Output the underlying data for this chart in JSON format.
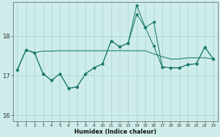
{
  "xlabel": "Humidex (Indice chaleur)",
  "bg_color": "#ceecea",
  "line_color": "#1a7a6e",
  "grid_color": "#9ed4d0",
  "x_values": [
    0,
    1,
    2,
    3,
    4,
    5,
    6,
    7,
    8,
    9,
    10,
    11,
    12,
    13,
    14,
    15,
    16,
    17,
    18,
    19,
    20,
    21,
    22,
    23
  ],
  "series1": [
    17.15,
    17.65,
    17.58,
    17.62,
    17.62,
    17.63,
    17.63,
    17.63,
    17.63,
    17.63,
    17.63,
    17.63,
    17.63,
    17.63,
    17.63,
    17.63,
    17.55,
    17.48,
    17.42,
    17.42,
    17.45,
    17.45,
    17.45,
    17.42
  ],
  "series2": [
    17.15,
    17.65,
    17.58,
    17.05,
    16.88,
    17.05,
    16.68,
    16.72,
    17.05,
    17.2,
    17.3,
    17.88,
    17.73,
    17.82,
    18.78,
    18.22,
    18.35,
    17.22,
    17.2,
    17.2,
    17.28,
    17.3,
    17.72,
    17.42
  ],
  "series3": [
    17.15,
    17.65,
    17.58,
    17.05,
    16.88,
    17.05,
    16.68,
    16.72,
    17.05,
    17.2,
    17.3,
    17.88,
    17.73,
    17.82,
    18.55,
    18.22,
    17.75,
    17.22,
    17.2,
    17.2,
    17.28,
    17.3,
    17.72,
    17.42
  ],
  "ylim": [
    15.85,
    18.85
  ],
  "yticks": [
    16,
    17,
    18
  ],
  "xlim": [
    -0.5,
    23.5
  ]
}
